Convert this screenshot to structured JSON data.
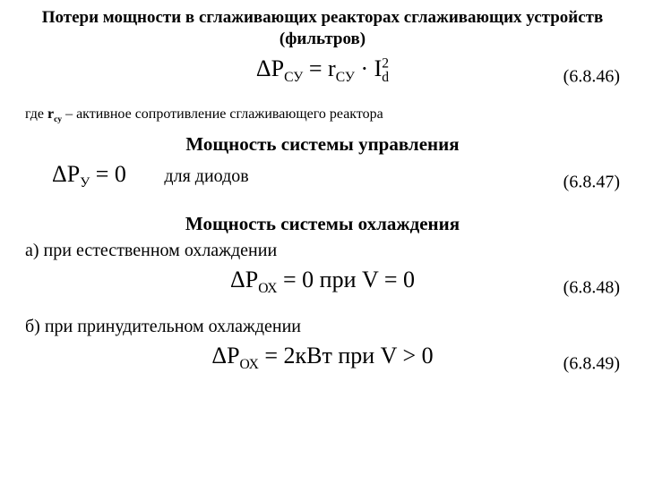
{
  "title": "Потери мощности в сглаживающих реакторах сглаживающих устройств (фильтров)",
  "eq46": {
    "formula": "ΔP_СУ = r_СУ · I_d²",
    "lhs": "ΔP",
    "lhs_sub": "СУ",
    "eq": " = ",
    "r": "r",
    "r_sub": "СУ",
    "dot": " · ",
    "I": "I",
    "I_sub": "d",
    "I_sup": "2",
    "num": "(6.8.46)"
  },
  "note46": {
    "prefix": "где ",
    "sym": "r",
    "sym_sub": "су",
    "rest": " – активное сопротивление сглаживающего реактора"
  },
  "heading_control": "Мощность системы управления",
  "eq47": {
    "lhs": "ΔP",
    "lhs_sub": "У",
    "eq": " = 0",
    "mid": "для диодов",
    "num": "(6.8.47)"
  },
  "heading_cooling": "Мощность системы охлаждения",
  "line_a": "а) при естественном охлаждении",
  "eq48": {
    "lhs": "ΔP",
    "lhs_sub": "ОХ",
    "eq": " = 0 при V = 0",
    "num": "(6.8.48)"
  },
  "line_b": "б) при принудительном охлаждении",
  "eq49": {
    "lhs": "ΔP",
    "lhs_sub": "ОХ",
    "eq": " = 2кВт при V > 0",
    "num": "(6.8.49)"
  }
}
